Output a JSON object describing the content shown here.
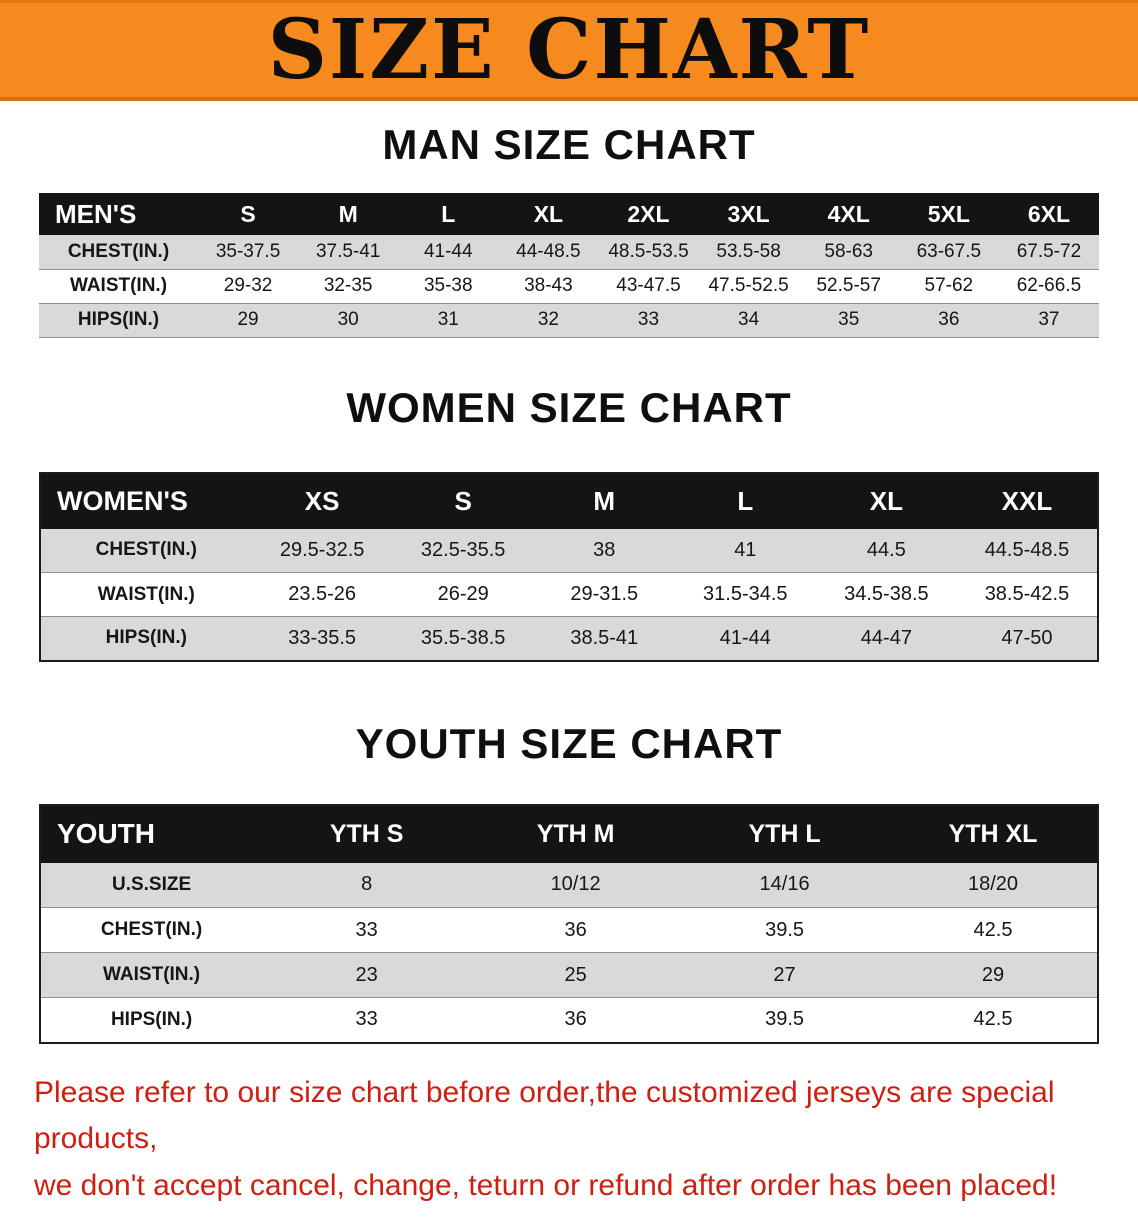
{
  "banner": {
    "title": "SIZE CHART"
  },
  "men": {
    "heading": "MAN SIZE CHART",
    "table": {
      "header": [
        "MEN'S",
        "S",
        "M",
        "L",
        "XL",
        "2XL",
        "3XL",
        "4XL",
        "5XL",
        "6XL"
      ],
      "rows": [
        [
          "CHEST(IN.)",
          "35-37.5",
          "37.5-41",
          "41-44",
          "44-48.5",
          "48.5-53.5",
          "53.5-58",
          "58-63",
          "63-67.5",
          "67.5-72"
        ],
        [
          "WAIST(IN.)",
          "29-32",
          "32-35",
          "35-38",
          "38-43",
          "43-47.5",
          "47.5-52.5",
          "52.5-57",
          "57-62",
          "62-66.5"
        ],
        [
          "HIPS(IN.)",
          "29",
          "30",
          "31",
          "32",
          "33",
          "34",
          "35",
          "36",
          "37"
        ]
      ]
    }
  },
  "women": {
    "heading": "WOMEN SIZE CHART",
    "table": {
      "header": [
        "WOMEN'S",
        "XS",
        "S",
        "M",
        "L",
        "XL",
        "XXL"
      ],
      "rows": [
        [
          "CHEST(IN.)",
          "29.5-32.5",
          "32.5-35.5",
          "38",
          "41",
          "44.5",
          "44.5-48.5"
        ],
        [
          "WAIST(IN.)",
          "23.5-26",
          "26-29",
          "29-31.5",
          "31.5-34.5",
          "34.5-38.5",
          "38.5-42.5"
        ],
        [
          "HIPS(IN.)",
          "33-35.5",
          "35.5-38.5",
          "38.5-41",
          "41-44",
          "44-47",
          "47-50"
        ]
      ]
    }
  },
  "youth": {
    "heading": "YOUTH SIZE CHART",
    "table": {
      "header": [
        "YOUTH",
        "YTH S",
        "YTH M",
        "YTH L",
        "YTH XL"
      ],
      "rows": [
        [
          "U.S.SIZE",
          "8",
          "10/12",
          "14/16",
          "18/20"
        ],
        [
          "CHEST(IN.)",
          "33",
          "36",
          "39.5",
          "42.5"
        ],
        [
          "WAIST(IN.)",
          "23",
          "25",
          "27",
          "29"
        ],
        [
          "HIPS(IN.)",
          "33",
          "36",
          "39.5",
          "42.5"
        ]
      ]
    }
  },
  "notice": {
    "line1": "Please refer to our size chart before order,the customized jerseys are special products,",
    "line2": "we don't accept cancel, change, teturn or refund after order has been placed!"
  },
  "colors": {
    "banner_orange": "#f68a1f",
    "header_black": "#141414",
    "row_gray": "#d9d9d9",
    "notice_red": "#d01f10"
  }
}
